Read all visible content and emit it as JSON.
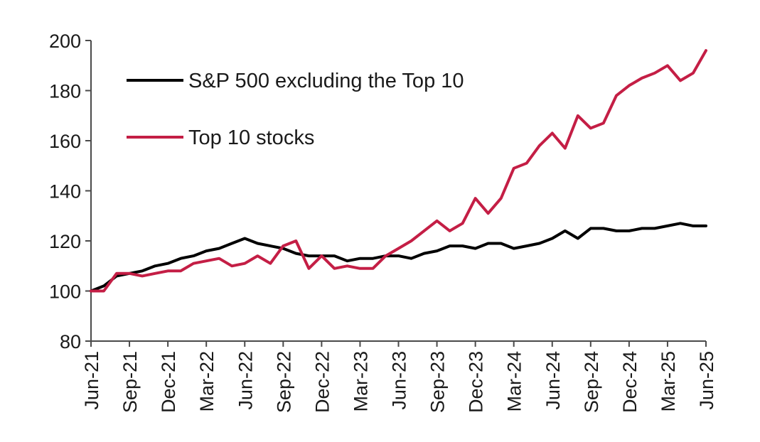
{
  "chart_data": {
    "type": "line",
    "title": "",
    "xlabel": "",
    "ylabel": "",
    "ylim": [
      80,
      200
    ],
    "yticks": [
      80,
      100,
      120,
      140,
      160,
      180,
      200
    ],
    "x_tick_labels": [
      "Jun-21",
      "Sep-21",
      "Dec-21",
      "Mar-22",
      "Jun-22",
      "Sep-22",
      "Dec-22",
      "Mar-23",
      "Jun-23",
      "Sep-23",
      "Dec-23",
      "Mar-24",
      "Jun-24",
      "Sep-24",
      "Dec-24",
      "Mar-25",
      "Jun-25"
    ],
    "x": [
      "Jun-21",
      "Jul-21",
      "Aug-21",
      "Sep-21",
      "Oct-21",
      "Nov-21",
      "Dec-21",
      "Jan-22",
      "Feb-22",
      "Mar-22",
      "Apr-22",
      "May-22",
      "Jun-22",
      "Jul-22",
      "Aug-22",
      "Sep-22",
      "Oct-22",
      "Nov-22",
      "Dec-22",
      "Jan-23",
      "Feb-23",
      "Mar-23",
      "Apr-23",
      "May-23",
      "Jun-23",
      "Jul-23",
      "Aug-23",
      "Sep-23",
      "Oct-23",
      "Nov-23",
      "Dec-23",
      "Jan-24",
      "Feb-24",
      "Mar-24",
      "Apr-24",
      "May-24",
      "Jun-24",
      "Jul-24",
      "Aug-24",
      "Sep-24",
      "Oct-24",
      "Nov-24",
      "Dec-24",
      "Jan-25",
      "Feb-25",
      "Mar-25",
      "Apr-25",
      "May-25",
      "Jun-25"
    ],
    "grid": false,
    "legend_position": "top-left",
    "series": [
      {
        "name": "S&P 500 excluding the Top 10",
        "color": "#000000",
        "values": [
          100,
          102,
          106,
          107,
          108,
          110,
          111,
          113,
          114,
          116,
          117,
          119,
          121,
          119,
          118,
          117,
          115,
          114,
          114,
          114,
          112,
          113,
          113,
          114,
          114,
          113,
          115,
          116,
          118,
          118,
          117,
          119,
          119,
          117,
          118,
          119,
          121,
          124,
          121,
          125,
          125,
          124,
          124,
          125,
          125,
          126,
          127,
          126,
          126
        ]
      },
      {
        "name": "Top 10 stocks",
        "color": "#c41e45",
        "values": [
          100,
          100,
          107,
          107,
          106,
          107,
          108,
          108,
          111,
          112,
          113,
          110,
          111,
          114,
          111,
          118,
          120,
          109,
          114,
          109,
          110,
          109,
          109,
          114,
          117,
          120,
          124,
          128,
          124,
          127,
          137,
          131,
          137,
          149,
          151,
          158,
          163,
          157,
          170,
          165,
          167,
          178,
          182,
          185,
          187,
          190,
          184,
          187,
          196
        ]
      }
    ]
  }
}
